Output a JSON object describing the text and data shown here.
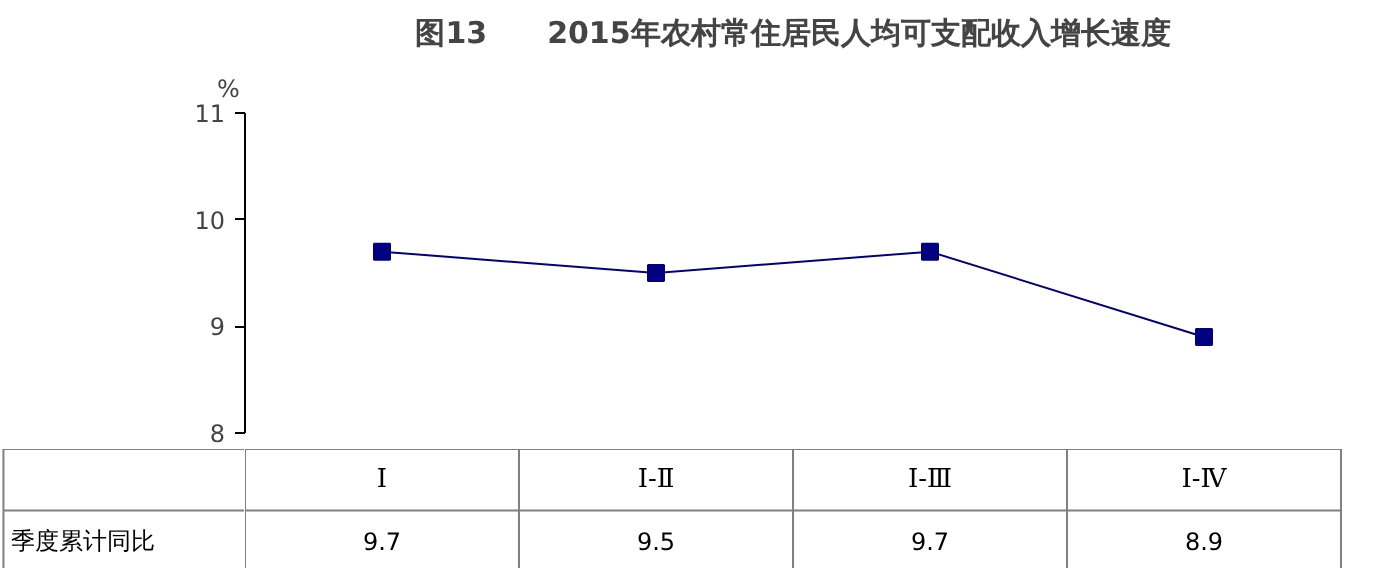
{
  "chart_data": {
    "type": "line",
    "title": "图13　　2015年农村常住居民人均可支配收入增长速度",
    "ylabel": "%",
    "categories": [
      "Ⅰ",
      "Ⅰ-Ⅱ",
      "Ⅰ-Ⅲ",
      "Ⅰ-Ⅳ"
    ],
    "series": [
      {
        "name": "季度累计同比",
        "color": "#000080",
        "values": [
          9.7,
          9.5,
          9.7,
          8.9
        ]
      }
    ],
    "ylim": [
      8,
      11
    ],
    "yticks": [
      8,
      9,
      10,
      11
    ],
    "grid": false,
    "marker": "square",
    "line_style": "solid",
    "data_labels": true
  }
}
